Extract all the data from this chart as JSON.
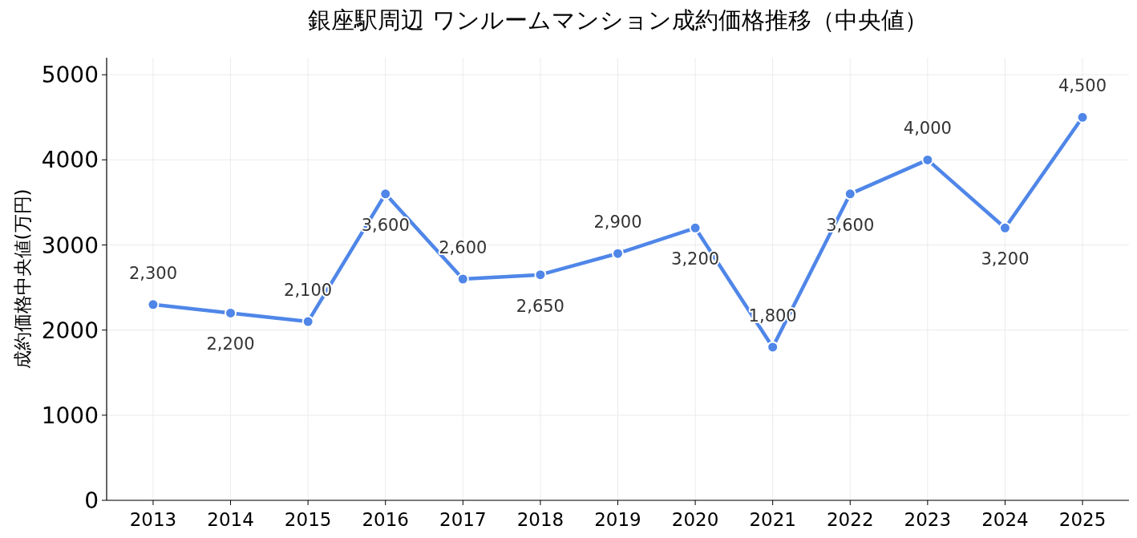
{
  "chart_data": {
    "type": "line",
    "title": "銀座駅周辺 ワンルームマンション成約価格推移（中央値）",
    "ylabel": "成約価格中央値(万円)",
    "categories": [
      "2013",
      "2014",
      "2015",
      "2016",
      "2017",
      "2018",
      "2019",
      "2020",
      "2021",
      "2022",
      "2023",
      "2024",
      "2025"
    ],
    "series": [
      {
        "color": "#4f86e8",
        "values": [
          2300,
          2200,
          2100,
          3600,
          2600,
          2650,
          2900,
          3200,
          1800,
          3600,
          4000,
          3200,
          4500
        ],
        "value_labels": [
          "2,300",
          "2,200",
          "2,100",
          "3,600",
          "2,600",
          "2,650",
          "2,900",
          "3,200",
          "1,800",
          "3,600",
          "4,000",
          "3,200",
          "4,500"
        ]
      }
    ],
    "ylim": [
      0,
      5200
    ],
    "yticks": [
      0,
      1000,
      2000,
      3000,
      4000,
      5000
    ],
    "grid": true,
    "marker": "circle",
    "line_style": "solid"
  }
}
